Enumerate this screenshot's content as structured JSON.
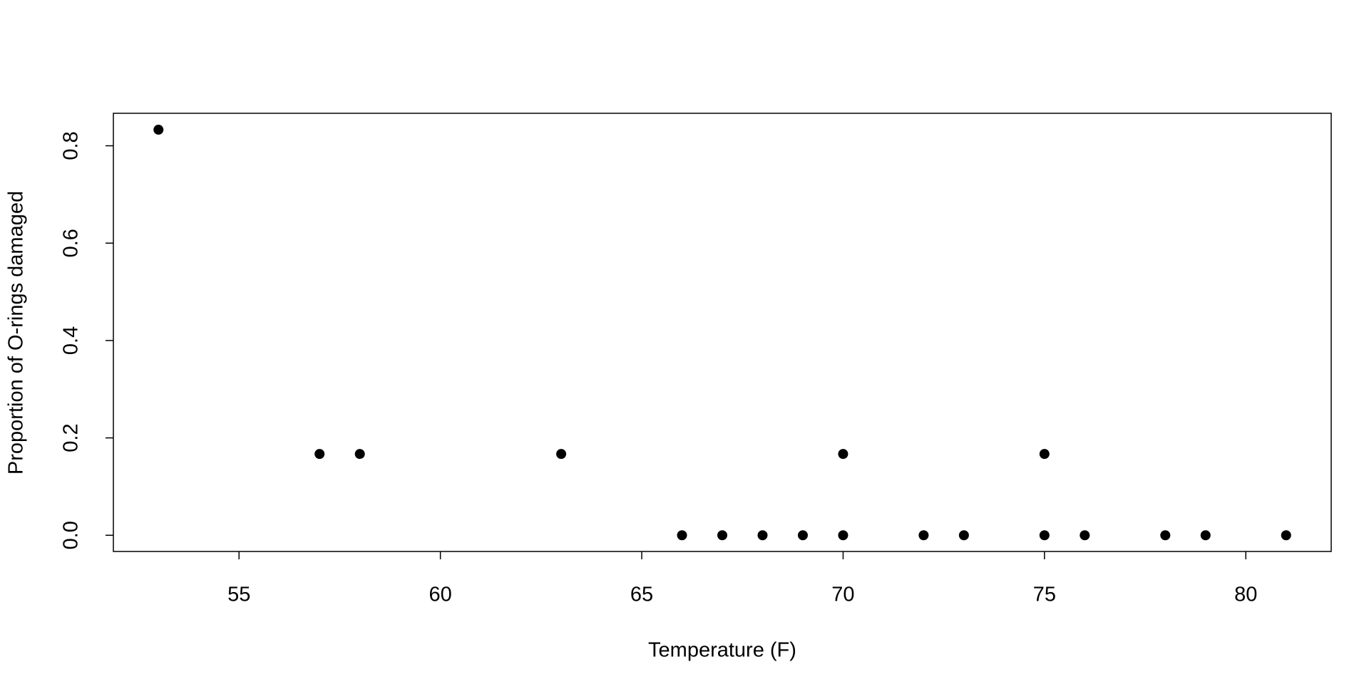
{
  "chart_data": {
    "type": "scatter",
    "x_label": "Temperature (F)",
    "y_label": "Proportion of O-rings damaged",
    "x": [
      53,
      57,
      58,
      63,
      66,
      67,
      68,
      69,
      70,
      70,
      72,
      73,
      75,
      75,
      76,
      78,
      79,
      81
    ],
    "values": [
      0.833,
      0.167,
      0.167,
      0.167,
      0,
      0,
      0,
      0,
      0.167,
      0,
      0,
      0,
      0.167,
      0,
      0,
      0,
      0,
      0
    ],
    "color": "#000000",
    "xlim": [
      51.88,
      82.12
    ],
    "ylim": [
      -0.0333,
      0.8667
    ],
    "xticks": [
      55,
      60,
      65,
      70,
      75,
      80
    ],
    "yticks": [
      {
        "value": 0,
        "label": "0.0"
      },
      0.2,
      0.4,
      0.6,
      0.8
    ]
  }
}
